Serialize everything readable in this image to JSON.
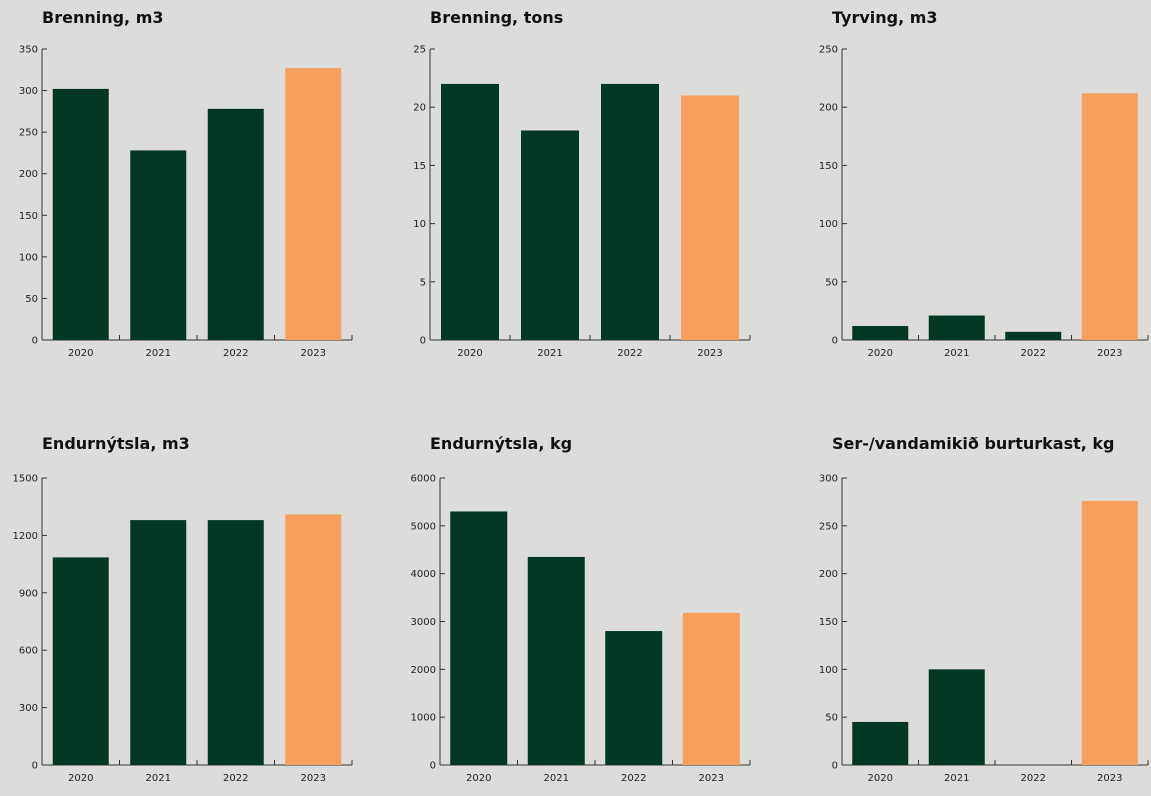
{
  "colors": {
    "bar": "#023823",
    "highlight": "#f79f5c",
    "axis": "#333333",
    "background": "#dcdddb"
  },
  "chart_data": [
    {
      "type": "bar",
      "title": "Brenning, m3",
      "categories": [
        "2020",
        "2021",
        "2022",
        "2023"
      ],
      "values": [
        302,
        228,
        278,
        327
      ],
      "ylim": [
        0,
        350
      ],
      "yticks": [
        0,
        50,
        100,
        150,
        200,
        250,
        300,
        350
      ],
      "highlight_index": 3,
      "grid": false
    },
    {
      "type": "bar",
      "title": "Brenning, tons",
      "categories": [
        "2020",
        "2021",
        "2022",
        "2023"
      ],
      "values": [
        22,
        18,
        22,
        21
      ],
      "ylim": [
        0,
        25
      ],
      "yticks": [
        0,
        5,
        10,
        15,
        20,
        25
      ],
      "highlight_index": 3,
      "grid": false
    },
    {
      "type": "bar",
      "title": "Tyrving, m3",
      "categories": [
        "2020",
        "2021",
        "2022",
        "2023"
      ],
      "values": [
        12,
        21,
        7,
        212
      ],
      "ylim": [
        0,
        250
      ],
      "yticks": [
        0,
        50,
        100,
        150,
        200,
        250
      ],
      "highlight_index": 3,
      "grid": false
    },
    {
      "type": "bar",
      "title": "Endurnýtsla, m3",
      "categories": [
        "2020",
        "2021",
        "2022",
        "2023"
      ],
      "values": [
        1085,
        1280,
        1280,
        1310
      ],
      "ylim": [
        0,
        1500
      ],
      "yticks": [
        0,
        300,
        600,
        900,
        1200,
        1500
      ],
      "highlight_index": 3,
      "grid": false
    },
    {
      "type": "bar",
      "title": "Endurnýtsla, kg",
      "categories": [
        "2020",
        "2021",
        "2022",
        "2023"
      ],
      "values": [
        5300,
        4350,
        2800,
        3180
      ],
      "ylim": [
        0,
        6000
      ],
      "yticks": [
        0,
        1000,
        2000,
        3000,
        4000,
        5000,
        6000
      ],
      "highlight_index": 3,
      "grid": false
    },
    {
      "type": "bar",
      "title": "Ser-/vandamikið burturkast, kg",
      "categories": [
        "2020",
        "2021",
        "2022",
        "2023"
      ],
      "values": [
        45,
        100,
        0,
        276
      ],
      "ylim": [
        0,
        300
      ],
      "yticks": [
        0,
        50,
        100,
        150,
        200,
        250,
        300
      ],
      "highlight_index": 3,
      "grid": false
    }
  ]
}
